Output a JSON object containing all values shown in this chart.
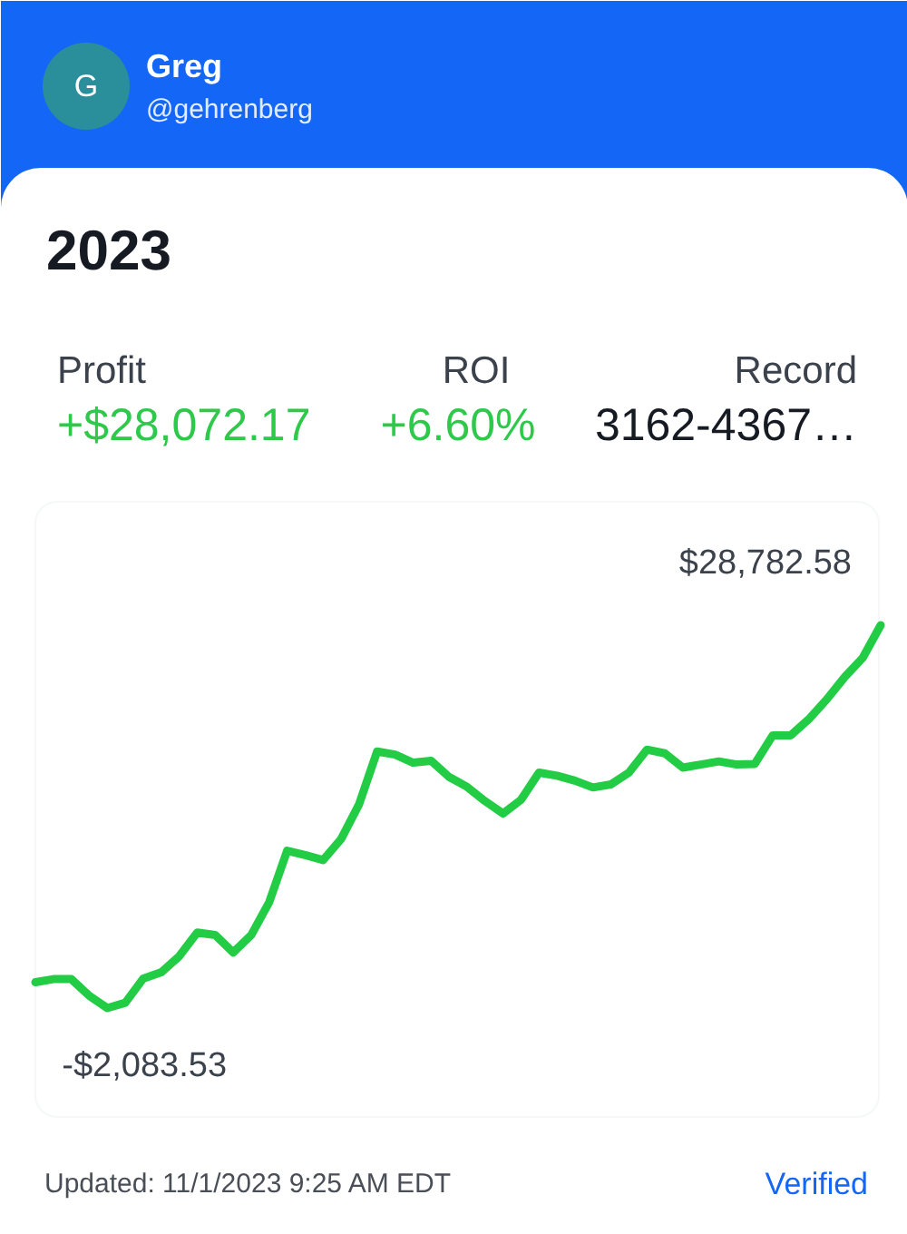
{
  "chart_data": {
    "type": "line",
    "title": "2023",
    "categories": [
      null,
      null,
      null,
      null,
      null,
      null,
      null,
      null,
      null,
      null,
      null,
      null,
      null,
      null,
      null,
      null,
      null,
      null,
      null,
      null,
      null,
      null,
      null,
      null,
      null,
      null,
      null,
      null,
      null,
      null,
      null,
      null,
      null,
      null,
      null,
      null,
      null,
      null,
      null,
      null,
      null,
      null,
      null,
      null,
      null,
      null,
      null,
      null
    ],
    "values": [
      0,
      250,
      250,
      -1100,
      -2083.53,
      -1650,
      300,
      800,
      2100,
      4000,
      3800,
      2400,
      3800,
      6450,
      10600,
      10250,
      9850,
      11550,
      14350,
      18600,
      18350,
      17700,
      17850,
      16550,
      15750,
      14600,
      13600,
      14700,
      16900,
      16650,
      16250,
      15700,
      15950,
      16900,
      18750,
      18450,
      17300,
      17550,
      17800,
      17550,
      17600,
      19900,
      19900,
      21200,
      22800,
      24600,
      26150,
      28782.58
    ],
    "value_labels": [
      null,
      null,
      null,
      null,
      "-$2,083.53",
      null,
      null,
      null,
      null,
      null,
      null,
      null,
      null,
      null,
      null,
      null,
      null,
      null,
      null,
      null,
      null,
      null,
      null,
      null,
      null,
      null,
      null,
      null,
      null,
      null,
      null,
      null,
      null,
      null,
      null,
      null,
      null,
      null,
      null,
      null,
      null,
      null,
      null,
      null,
      null,
      null,
      null,
      "$28,782.58"
    ],
    "color": "#22cc44",
    "annotations": [
      "G",
      "Greg",
      "@gehrenberg",
      "Profit",
      "+$28,072.17",
      "ROI",
      "+6.60%",
      "Record",
      "3162-4367…",
      "Updated: 11/1/2023 9:25 AM EDT",
      "Verified"
    ]
  }
}
